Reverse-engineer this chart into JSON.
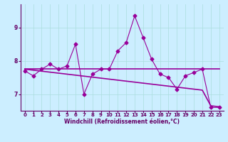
{
  "xlabel": "Windchill (Refroidissement éolien,°C)",
  "bg_color": "#cceeff",
  "line_color": "#990099",
  "x": [
    0,
    1,
    2,
    3,
    4,
    5,
    6,
    7,
    8,
    9,
    10,
    11,
    12,
    13,
    14,
    15,
    16,
    17,
    18,
    19,
    20,
    21,
    22,
    23
  ],
  "y_main": [
    7.7,
    7.55,
    7.75,
    7.9,
    7.75,
    7.85,
    8.5,
    7.0,
    7.6,
    7.75,
    7.75,
    8.3,
    8.55,
    9.35,
    8.7,
    8.05,
    7.6,
    7.5,
    7.15,
    7.55,
    7.65,
    7.75,
    6.6,
    6.6
  ],
  "y_flat": [
    7.75,
    7.75,
    7.75,
    7.75,
    7.75,
    7.75,
    7.75,
    7.75,
    7.75,
    7.75,
    7.75,
    7.75,
    7.75,
    7.75,
    7.75,
    7.75,
    7.75,
    7.75,
    7.75,
    7.75,
    7.75,
    7.75,
    7.75,
    7.75
  ],
  "y_slope": [
    7.75,
    7.72,
    7.69,
    7.66,
    7.63,
    7.6,
    7.57,
    7.54,
    7.51,
    7.48,
    7.45,
    7.42,
    7.39,
    7.36,
    7.33,
    7.3,
    7.27,
    7.24,
    7.21,
    7.18,
    7.15,
    7.12,
    6.65,
    6.62
  ],
  "ylim": [
    6.5,
    9.7
  ],
  "xlim": [
    -0.5,
    23.5
  ],
  "yticks": [
    7,
    8,
    9
  ],
  "xticks": [
    0,
    1,
    2,
    3,
    4,
    5,
    6,
    7,
    8,
    9,
    10,
    11,
    12,
    13,
    14,
    15,
    16,
    17,
    18,
    19,
    20,
    21,
    22,
    23
  ],
  "grid_color": "#aadddd",
  "marker": "D",
  "linewidth": 0.8,
  "markersize": 2.5,
  "label_fontsize": 5.0,
  "tick_fontsize": 5.0,
  "xlabel_fontsize": 5.5
}
